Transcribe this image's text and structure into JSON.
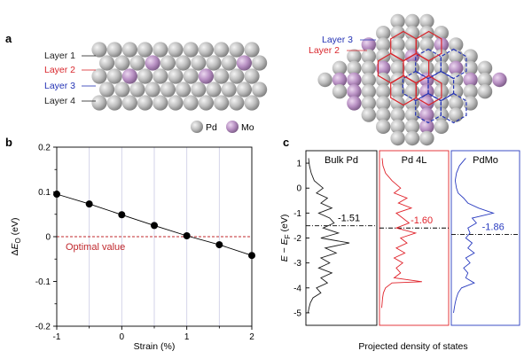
{
  "panels": {
    "a": "a",
    "b": "b",
    "c": "c"
  },
  "panel_a": {
    "side_layers": [
      {
        "label": "Layer 1",
        "color": "#222222"
      },
      {
        "label": "Layer 2",
        "color": "#d9262c"
      },
      {
        "label": "Layer 3",
        "color": "#2433b5"
      },
      {
        "label": "Layer 4",
        "color": "#222222"
      }
    ],
    "top_layers": [
      {
        "label": "Layer 3",
        "color": "#2433b5"
      },
      {
        "label": "Layer 2",
        "color": "#d9262c"
      }
    ],
    "legend": [
      {
        "label": "Pd",
        "color": "#b8b8b8"
      },
      {
        "label": "Mo",
        "color": "#b48fc0"
      }
    ]
  },
  "chart_data": [
    {
      "type": "scatter",
      "panel": "b",
      "xlabel": "Strain (%)",
      "ylabel": "ΔE_O (eV)",
      "x": [
        -1,
        -0.5,
        0,
        0.5,
        1,
        1.5,
        2
      ],
      "y": [
        0.095,
        0.073,
        0.049,
        0.025,
        0.002,
        -0.018,
        -0.042
      ],
      "xlim": [
        -1,
        2
      ],
      "ylim": [
        -0.2,
        0.2
      ],
      "xticks": [
        "-1",
        "0",
        "1",
        "2"
      ],
      "yticks": [
        "-0.2",
        "-0.1",
        "0",
        "0.1",
        "0.2"
      ],
      "reference_line": {
        "y": 0,
        "label": "Optimal value",
        "color": "#c0282d"
      },
      "vertical_gridlines_x": [
        -0.5,
        0,
        0.5,
        1,
        1.5
      ],
      "series_color": "#000000"
    },
    {
      "type": "line",
      "panel": "c",
      "ylabel": "E − E_F (eV)",
      "xlabel": "Projected density of states",
      "ylim": [
        -5.5,
        1.5
      ],
      "yticks": [
        "1",
        "0",
        "-1",
        "-2",
        "-3",
        "-4",
        "-5"
      ],
      "series": [
        {
          "name": "Bulk Pd",
          "color": "#1a1a1a",
          "d_band_center": -1.51,
          "center_label": "-1.51",
          "y": [
            1.2,
            0.9,
            0.6,
            0.3,
            0.0,
            -0.2,
            -0.4,
            -0.6,
            -0.8,
            -1.0,
            -1.2,
            -1.4,
            -1.6,
            -1.8,
            -2.0,
            -2.2,
            -2.4,
            -2.6,
            -2.8,
            -3.0,
            -3.2,
            -3.4,
            -3.6,
            -3.8,
            -4.0,
            -4.2,
            -4.4,
            -4.6,
            -4.8,
            -5.0
          ],
          "dos": [
            0.02,
            0.04,
            0.08,
            0.15,
            0.35,
            0.2,
            0.45,
            0.3,
            0.55,
            0.25,
            0.5,
            0.6,
            0.35,
            0.7,
            0.3,
            0.95,
            0.4,
            0.65,
            0.3,
            0.5,
            0.25,
            0.55,
            0.3,
            0.45,
            0.2,
            0.3,
            0.12,
            0.06,
            0.03,
            0.01
          ]
        },
        {
          "name": "Pd 4L",
          "color": "#e0232b",
          "d_band_center": -1.6,
          "center_label": "-1.60",
          "y": [
            1.2,
            0.9,
            0.6,
            0.3,
            0.0,
            -0.2,
            -0.4,
            -0.6,
            -0.8,
            -1.0,
            -1.2,
            -1.4,
            -1.6,
            -1.8,
            -2.0,
            -2.2,
            -2.4,
            -2.6,
            -2.8,
            -3.0,
            -3.2,
            -3.4,
            -3.6,
            -3.75,
            -3.8,
            -4.0,
            -4.2,
            -4.4,
            -4.6,
            -4.8
          ],
          "dos": [
            0.02,
            0.04,
            0.1,
            0.25,
            0.45,
            0.3,
            0.6,
            0.4,
            0.7,
            0.35,
            0.5,
            0.65,
            0.35,
            0.8,
            0.45,
            0.6,
            0.35,
            0.55,
            0.3,
            0.5,
            0.35,
            0.45,
            0.3,
            0.95,
            0.25,
            0.1,
            0.05,
            0.03,
            0.02,
            0.01
          ]
        },
        {
          "name": "PdMo",
          "color": "#2a3cc0",
          "d_band_center": -1.86,
          "center_label": "-1.86",
          "y": [
            1.2,
            0.9,
            0.6,
            0.3,
            0.0,
            -0.2,
            -0.4,
            -0.6,
            -0.8,
            -1.0,
            -1.2,
            -1.4,
            -1.6,
            -1.8,
            -2.0,
            -2.2,
            -2.4,
            -2.6,
            -2.8,
            -3.0,
            -3.2,
            -3.4,
            -3.6,
            -3.8,
            -4.0,
            -4.2,
            -4.4,
            -4.6,
            -4.8,
            -5.0
          ],
          "dos": [
            0.3,
            0.15,
            0.08,
            0.05,
            0.08,
            0.12,
            0.25,
            0.35,
            0.6,
            0.95,
            0.45,
            0.55,
            0.35,
            0.4,
            0.3,
            0.45,
            0.35,
            0.5,
            0.3,
            0.4,
            0.25,
            0.35,
            0.3,
            0.5,
            0.2,
            0.12,
            0.08,
            0.05,
            0.03,
            0.01
          ]
        }
      ]
    }
  ]
}
